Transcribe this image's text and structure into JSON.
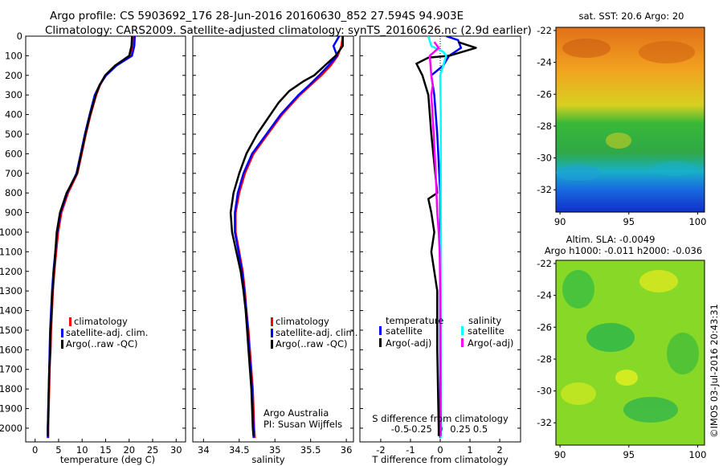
{
  "header": {
    "title_line1": "Argo profile: CS 5903692_176 28-Jun-2016 20160630_852 27.594S 94.903E",
    "title_line2": "Climatology: CARS2009. Satellite-adjusted climatology: synTS_20160626.nc (2.9d earlier)"
  },
  "colors": {
    "climatology": "#ff0000",
    "satellite": "#0000ff",
    "argo": "#000000",
    "salinity_satellite": "#00ffff",
    "salinity_argo": "#ff00ff"
  },
  "legend_main": {
    "climatology": "climatology",
    "satellite": "satellite-adj. clim.",
    "argo": "Argo(..raw -QC)"
  },
  "legend_diff": {
    "temp_header": "temperature",
    "sal_header": "salinity",
    "satellite": "satellite",
    "argo": "Argo(-adj)"
  },
  "credits": {
    "line1": "Argo Australia",
    "line2": "PI: Susan Wijffels"
  },
  "timestamp": "©IMOS 03-Jul-2016 20:43:31",
  "maps": {
    "sst_title": "sat. SST: 20.6 Argo: 20",
    "sla_title1": "Altim. SLA: -0.0049",
    "sla_title2": "Argo h1000: -0.011 h2000: -0.036"
  },
  "chart_data": [
    {
      "type": "line",
      "id": "temperature",
      "xlabel": "temperature (deg C)",
      "ylabel": "",
      "xlim": [
        -2,
        32
      ],
      "ylim": [
        2070,
        0
      ],
      "xticks": [
        0,
        5,
        10,
        15,
        20,
        25,
        30
      ],
      "yticks": [
        0,
        100,
        200,
        300,
        400,
        500,
        600,
        700,
        800,
        900,
        1000,
        1100,
        1200,
        1300,
        1400,
        1500,
        1600,
        1700,
        1800,
        1900,
        2000
      ],
      "series": [
        {
          "name": "climatology",
          "color": "#ff0000",
          "points": [
            [
              21.0,
              0
            ],
            [
              20.9,
              50
            ],
            [
              20.4,
              100
            ],
            [
              17.2,
              150
            ],
            [
              15.0,
              200
            ],
            [
              13.8,
              250
            ],
            [
              13.0,
              300
            ],
            [
              11.8,
              400
            ],
            [
              10.8,
              500
            ],
            [
              9.9,
              600
            ],
            [
              9.0,
              700
            ],
            [
              7.0,
              800
            ],
            [
              5.6,
              900
            ],
            [
              4.9,
              1000
            ],
            [
              4.5,
              1100
            ],
            [
              4.1,
              1200
            ],
            [
              3.8,
              1300
            ],
            [
              3.6,
              1400
            ],
            [
              3.4,
              1500
            ],
            [
              3.3,
              1600
            ],
            [
              3.1,
              1700
            ],
            [
              3.0,
              1800
            ],
            [
              2.9,
              1900
            ],
            [
              2.8,
              2000
            ],
            [
              2.8,
              2050
            ]
          ]
        },
        {
          "name": "satellite-adj. clim.",
          "color": "#0000ff",
          "points": [
            [
              21.2,
              0
            ],
            [
              21.1,
              50
            ],
            [
              20.6,
              100
            ],
            [
              17.3,
              150
            ],
            [
              15.1,
              200
            ],
            [
              13.7,
              250
            ],
            [
              12.7,
              300
            ],
            [
              11.6,
              400
            ],
            [
              10.6,
              500
            ],
            [
              9.7,
              600
            ],
            [
              8.8,
              700
            ],
            [
              6.8,
              800
            ],
            [
              5.4,
              900
            ],
            [
              4.7,
              1000
            ],
            [
              4.3,
              1100
            ],
            [
              3.9,
              1200
            ],
            [
              3.6,
              1300
            ],
            [
              3.4,
              1400
            ],
            [
              3.2,
              1500
            ],
            [
              3.1,
              1600
            ],
            [
              3.0,
              1700
            ],
            [
              2.9,
              1800
            ],
            [
              2.8,
              1900
            ],
            [
              2.7,
              2000
            ],
            [
              2.7,
              2050
            ]
          ]
        },
        {
          "name": "Argo(..raw -QC)",
          "color": "#000000",
          "points": [
            [
              20.6,
              0
            ],
            [
              20.5,
              50
            ],
            [
              20.0,
              100
            ],
            [
              17.0,
              150
            ],
            [
              14.9,
              200
            ],
            [
              13.7,
              250
            ],
            [
              12.9,
              300
            ],
            [
              11.7,
              400
            ],
            [
              10.7,
              500
            ],
            [
              9.8,
              600
            ],
            [
              8.9,
              700
            ],
            [
              6.7,
              800
            ],
            [
              5.3,
              900
            ],
            [
              4.6,
              1000
            ],
            [
              4.3,
              1100
            ],
            [
              4.0,
              1200
            ],
            [
              3.7,
              1300
            ],
            [
              3.5,
              1400
            ],
            [
              3.3,
              1500
            ],
            [
              3.2,
              1600
            ],
            [
              3.0,
              1700
            ],
            [
              2.9,
              1800
            ],
            [
              2.8,
              1900
            ],
            [
              2.7,
              2000
            ],
            [
              2.7,
              2040
            ]
          ]
        }
      ]
    },
    {
      "type": "line",
      "id": "salinity",
      "xlabel": "salinity",
      "ylabel": "",
      "xlim": [
        33.85,
        36.1
      ],
      "ylim": [
        2070,
        0
      ],
      "xticks": [
        34,
        34.5,
        35,
        35.5,
        36
      ],
      "series": [
        {
          "name": "climatology",
          "color": "#ff0000",
          "points": [
            [
              35.95,
              0
            ],
            [
              35.93,
              50
            ],
            [
              35.88,
              100
            ],
            [
              35.78,
              150
            ],
            [
              35.65,
              200
            ],
            [
              35.5,
              250
            ],
            [
              35.35,
              300
            ],
            [
              35.1,
              400
            ],
            [
              34.9,
              500
            ],
            [
              34.7,
              600
            ],
            [
              34.58,
              700
            ],
            [
              34.5,
              800
            ],
            [
              34.45,
              900
            ],
            [
              34.45,
              1000
            ],
            [
              34.5,
              1100
            ],
            [
              34.55,
              1200
            ],
            [
              34.58,
              1300
            ],
            [
              34.6,
              1400
            ],
            [
              34.63,
              1500
            ],
            [
              34.65,
              1600
            ],
            [
              34.67,
              1700
            ],
            [
              34.69,
              1800
            ],
            [
              34.7,
              1900
            ],
            [
              34.71,
              2000
            ],
            [
              34.72,
              2050
            ]
          ]
        },
        {
          "name": "satellite-adj. clim.",
          "color": "#0000ff",
          "points": [
            [
              35.9,
              0
            ],
            [
              35.82,
              50
            ],
            [
              35.87,
              100
            ],
            [
              35.75,
              150
            ],
            [
              35.62,
              200
            ],
            [
              35.48,
              250
            ],
            [
              35.33,
              300
            ],
            [
              35.08,
              400
            ],
            [
              34.88,
              500
            ],
            [
              34.68,
              600
            ],
            [
              34.56,
              700
            ],
            [
              34.48,
              800
            ],
            [
              34.44,
              900
            ],
            [
              34.44,
              1000
            ],
            [
              34.49,
              1100
            ],
            [
              34.54,
              1200
            ],
            [
              34.57,
              1300
            ],
            [
              34.6,
              1400
            ],
            [
              34.62,
              1500
            ],
            [
              34.64,
              1600
            ],
            [
              34.66,
              1700
            ],
            [
              34.68,
              1800
            ],
            [
              34.69,
              1900
            ],
            [
              34.7,
              2000
            ],
            [
              34.7,
              2050
            ]
          ]
        },
        {
          "name": "Argo(..raw -QC)",
          "color": "#000000",
          "points": [
            [
              35.95,
              0
            ],
            [
              35.95,
              50
            ],
            [
              35.85,
              100
            ],
            [
              35.7,
              150
            ],
            [
              35.55,
              200
            ],
            [
              35.4,
              230
            ],
            [
              35.2,
              280
            ],
            [
              35.05,
              340
            ],
            [
              34.9,
              420
            ],
            [
              34.75,
              500
            ],
            [
              34.6,
              600
            ],
            [
              34.5,
              700
            ],
            [
              34.42,
              800
            ],
            [
              34.38,
              900
            ],
            [
              34.4,
              1000
            ],
            [
              34.46,
              1100
            ],
            [
              34.52,
              1200
            ],
            [
              34.56,
              1300
            ],
            [
              34.59,
              1400
            ],
            [
              34.61,
              1500
            ],
            [
              34.63,
              1600
            ],
            [
              34.65,
              1700
            ],
            [
              34.67,
              1800
            ],
            [
              34.68,
              1900
            ],
            [
              34.69,
              2000
            ],
            [
              34.7,
              2040
            ]
          ]
        }
      ]
    },
    {
      "type": "line",
      "id": "difference",
      "xlabel": "T difference from climatology",
      "xlabel_top": "S difference from climatology",
      "xlim": [
        -2.7,
        2.7
      ],
      "ylim": [
        2070,
        0
      ],
      "xticks": [
        -2,
        -1,
        0,
        1,
        2
      ],
      "xtick_labels": [
        "-2",
        "-1",
        "0",
        "1",
        "2"
      ],
      "sticks": [
        -0.5,
        -0.25,
        0,
        0.25,
        0.5
      ],
      "stick_labels": [
        "-0.5",
        "-0.25",
        "0",
        "0.25",
        "0.5"
      ],
      "series": [
        {
          "name": "temperature satellite",
          "color": "#0000ff",
          "points": [
            [
              0.2,
              0
            ],
            [
              0.6,
              20
            ],
            [
              0.7,
              60
            ],
            [
              0.3,
              100
            ],
            [
              0.1,
              150
            ],
            [
              -0.3,
              200
            ],
            [
              -0.2,
              300
            ],
            [
              -0.1,
              500
            ],
            [
              0,
              800
            ],
            [
              0,
              1200
            ],
            [
              0,
              2000
            ],
            [
              0,
              2050
            ]
          ]
        },
        {
          "name": "temperature Argo(-adj)",
          "color": "#000000",
          "points": [
            [
              0.6,
              30
            ],
            [
              1.2,
              60
            ],
            [
              0.3,
              100
            ],
            [
              -0.4,
              110
            ],
            [
              -0.8,
              140
            ],
            [
              -0.6,
              200
            ],
            [
              -0.4,
              300
            ],
            [
              -0.3,
              500
            ],
            [
              -0.1,
              800
            ],
            [
              -0.4,
              830
            ],
            [
              -0.3,
              900
            ],
            [
              -0.2,
              1000
            ],
            [
              -0.3,
              1100
            ],
            [
              -0.1,
              1300
            ],
            [
              -0.1,
              1600
            ],
            [
              -0.05,
              2000
            ],
            [
              -0.05,
              2040
            ]
          ]
        },
        {
          "name": "salinity satellite",
          "color": "#00ffff",
          "points": [
            [
              -0.4,
              0
            ],
            [
              -0.3,
              50
            ],
            [
              0.1,
              80
            ],
            [
              0.2,
              100
            ],
            [
              0.0,
              200
            ],
            [
              0.02,
              400
            ],
            [
              0.02,
              800
            ],
            [
              0.03,
              1200
            ],
            [
              0.03,
              1600
            ],
            [
              0.03,
              2000
            ],
            [
              0.03,
              2050
            ]
          ]
        },
        {
          "name": "salinity Argo(-adj)",
          "color": "#ff00ff",
          "points": [
            [
              -0.2,
              30
            ],
            [
              -0.05,
              60
            ],
            [
              -0.35,
              100
            ],
            [
              -0.3,
              200
            ],
            [
              -0.25,
              250
            ],
            [
              -0.3,
              300
            ],
            [
              -0.22,
              500
            ],
            [
              -0.15,
              700
            ],
            [
              -0.1,
              900
            ],
            [
              -0.05,
              1000
            ],
            [
              -0.02,
              1100
            ],
            [
              0,
              1300
            ],
            [
              0.01,
              1600
            ],
            [
              0.02,
              2000
            ],
            [
              0.02,
              2040
            ]
          ]
        }
      ]
    }
  ],
  "map_axes": {
    "xticks": [
      90,
      95,
      100
    ],
    "yticks": [
      -22,
      -24,
      -26,
      -28,
      -30,
      -32
    ],
    "xlim": [
      89.7,
      100.5
    ],
    "ylim": [
      -21.8,
      -33.4
    ]
  }
}
